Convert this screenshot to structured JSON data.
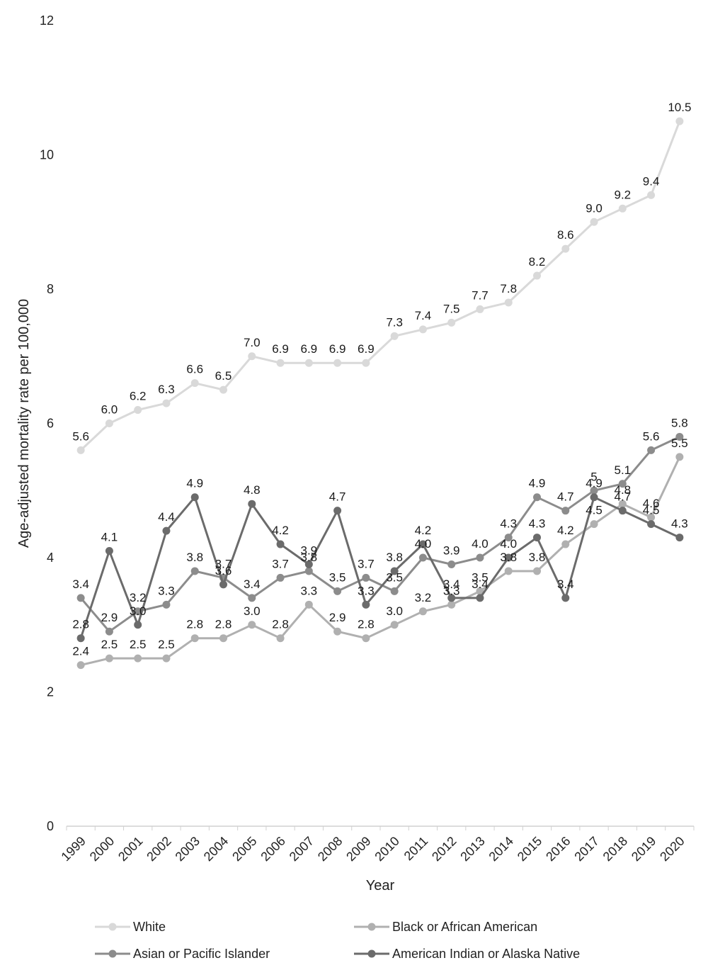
{
  "chart_data": {
    "type": "line",
    "title": "",
    "xlabel": "Year",
    "ylabel": "Age-adjusted mortality rate per 100,000",
    "ylim": [
      0,
      12
    ],
    "yticks": [
      0,
      2,
      4,
      6,
      8,
      10,
      12
    ],
    "grid": false,
    "legend_position": "bottom",
    "categories": [
      "1999",
      "2000",
      "2001",
      "2002",
      "2003",
      "2004",
      "2005",
      "2006",
      "2007",
      "2008",
      "2009",
      "2010",
      "2011",
      "2012",
      "2013",
      "2014",
      "2015",
      "2016",
      "2017",
      "2018",
      "2019",
      "2020"
    ],
    "series": [
      {
        "name": "White",
        "color": "#d9d9d9",
        "values": [
          5.6,
          6.0,
          6.2,
          6.3,
          6.6,
          6.5,
          7.0,
          6.9,
          6.9,
          6.9,
          6.9,
          7.3,
          7.4,
          7.5,
          7.7,
          7.8,
          8.2,
          8.6,
          9.0,
          9.2,
          9.4,
          10.5
        ],
        "labels": [
          "5.6",
          "6.0",
          "6.2",
          "6.3",
          "6.6",
          "6.5",
          "7.0",
          "6.9",
          "6.9",
          "6.9",
          "6.9",
          "7.3",
          "7.4",
          "7.5",
          "7.7",
          "7.8",
          "8.2",
          "8.6",
          "9.0",
          "9.2",
          "9.4",
          "10.5"
        ]
      },
      {
        "name": "Black or African American",
        "color": "#b0b0b0",
        "values": [
          2.4,
          2.5,
          2.5,
          2.5,
          2.8,
          2.8,
          3.0,
          2.8,
          3.3,
          2.9,
          2.8,
          3.0,
          3.2,
          3.3,
          3.5,
          3.8,
          3.8,
          4.2,
          4.5,
          4.8,
          4.6,
          5.5
        ],
        "labels": [
          "2.4",
          "2.5",
          "2.5",
          "2.5",
          "2.8",
          "2.8",
          "3.0",
          "2.8",
          "3.3",
          "2.9",
          "2.8",
          "3.0",
          "3.2",
          "3.3",
          "3.5",
          "3.8",
          "3.8",
          "4.2",
          "4.5",
          "4.8",
          "4.6",
          "5.5"
        ]
      },
      {
        "name": "Asian or Pacific Islander",
        "color": "#8c8c8c",
        "values": [
          3.4,
          2.9,
          3.2,
          3.3,
          3.8,
          3.7,
          3.4,
          3.7,
          3.8,
          3.5,
          3.7,
          3.5,
          4.0,
          3.9,
          4.0,
          4.3,
          4.9,
          4.7,
          5.0,
          5.1,
          5.6,
          5.8
        ],
        "labels": [
          "3.4",
          "2.9",
          "3.2",
          "3.3",
          "3.8",
          "3.7",
          "3.4",
          "3.7",
          "3.8",
          "3.5",
          "3.7",
          "3.5",
          "4.0",
          "3.9",
          "4.0",
          "4.3",
          "4.9",
          "4.7",
          "5",
          "5.1",
          "5.6",
          "5.8"
        ]
      },
      {
        "name": "American Indian or Alaska Native",
        "color": "#6b6b6b",
        "values": [
          2.8,
          4.1,
          3.0,
          4.4,
          4.9,
          3.6,
          4.8,
          4.2,
          3.9,
          4.7,
          3.3,
          3.8,
          4.2,
          3.4,
          3.4,
          4.0,
          4.3,
          3.4,
          4.9,
          4.7,
          4.5,
          4.3
        ],
        "labels": [
          "2.8",
          "4.1",
          "3.0",
          "4.4",
          "4.9",
          "3.6",
          "4.8",
          "4.2",
          "3.9",
          "4.7",
          "3.3",
          "3.8",
          "4.2",
          "3.4",
          "3.4",
          "4.0",
          "4.3",
          "3.4",
          "4.9",
          "4.7",
          "4.5",
          "4.3"
        ]
      }
    ]
  }
}
